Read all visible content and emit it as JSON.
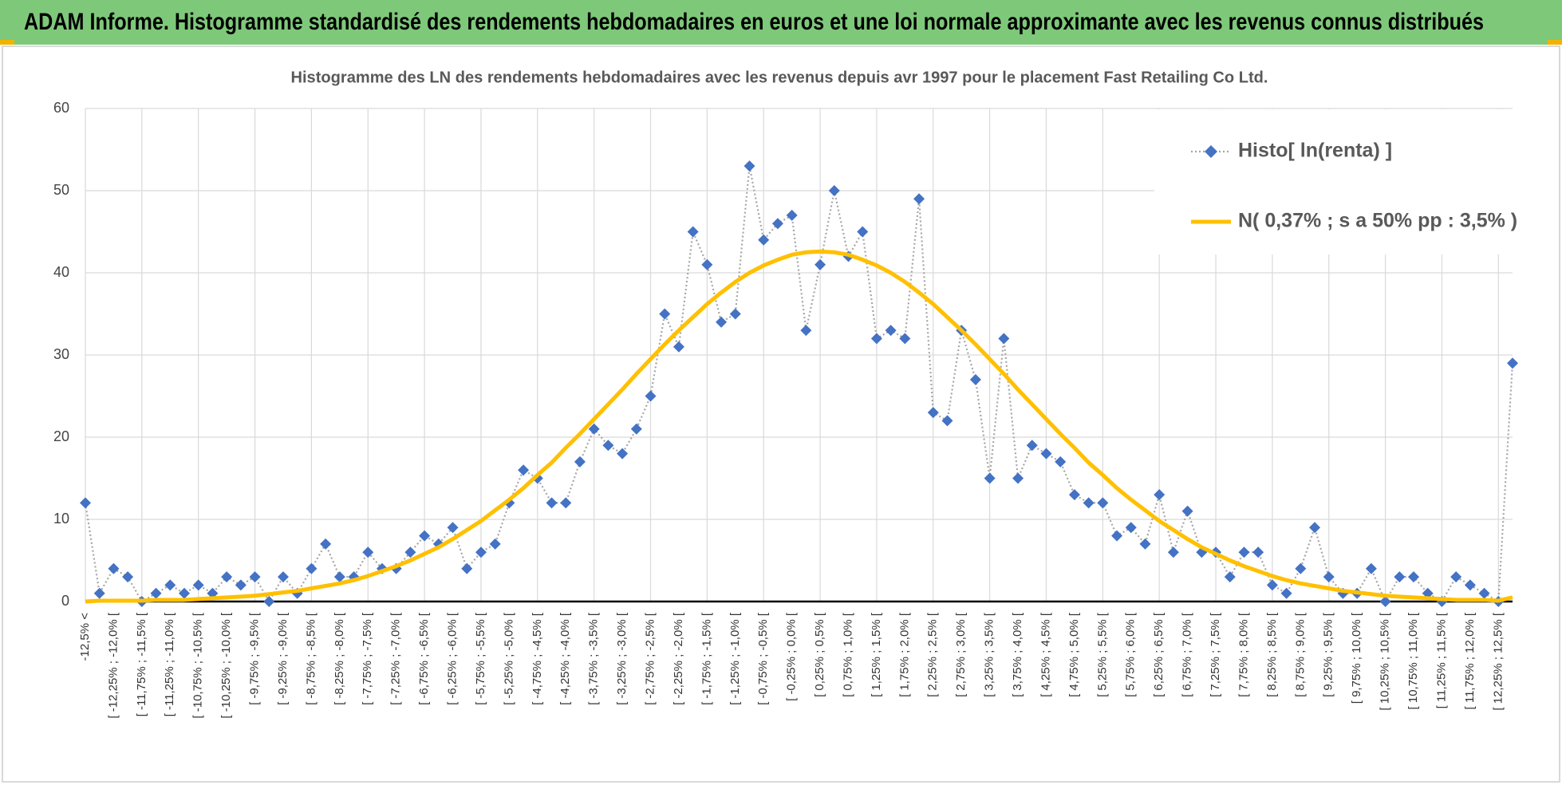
{
  "header": {
    "title": "ADAM Informe. Histogramme standardisé des rendements hebdomadaires en euros et une loi normale approximante avec les revenus connus distribués"
  },
  "chart_data": {
    "type": "line",
    "title": "Histogramme des LN des rendements hebdomadaires avec les revenus depuis avr 1997 pour le placement Fast Retailing Co Ltd.",
    "categories": [
      "-12,5% <",
      null,
      "[ -12,25% ; -12,0% [",
      null,
      "[ -11,75% ; -11,5% [",
      null,
      "[ -11,25% ; -11,0% [",
      null,
      "[ -10,75% ; -10,5% [",
      null,
      "[ -10,25% ; -10,0% [",
      null,
      "[ -9,75% ; -9,5% [",
      null,
      "[ -9,25% ; -9,0% [",
      null,
      "[ -8,75% ; -8,5% [",
      null,
      "[ -8,25% ; -8,0% [",
      null,
      "[ -7,75% ; -7,5% [",
      null,
      "[ -7,25% ; -7,0% [",
      null,
      "[ -6,75% ; -6,5% [",
      null,
      "[ -6,25% ; -6,0% [",
      null,
      "[ -5,75% ; -5,5% [",
      null,
      "[ -5,25% ; -5,0% [",
      null,
      "[ -4,75% ; -4,5% [",
      null,
      "[ -4,25% ; -4,0% [",
      null,
      "[ -3,75% ; -3,5% [",
      null,
      "[ -3,25% ; -3,0% [",
      null,
      "[ -2,75% ; -2,5% [",
      null,
      "[ -2,25% ; -2,0% [",
      null,
      "[ -1,75% ; -1,5% [",
      null,
      "[ -1,25% ; -1,0% [",
      null,
      "[ -0,75% ; -0,5% [",
      null,
      "[ -0,25% ; 0,0% [",
      null,
      "[ 0,25% ; 0,5% [",
      null,
      "[ 0,75% ; 1,0% [",
      null,
      "[ 1,25% ; 1,5% [",
      null,
      "[ 1,75% ; 2,0% [",
      null,
      "[ 2,25% ; 2,5% [",
      null,
      "[ 2,75% ; 3,0% [",
      null,
      "[ 3,25% ; 3,5% [",
      null,
      "[ 3,75% ; 4,0% [",
      null,
      "[ 4,25% ; 4,5% [",
      null,
      "[ 4,75% ; 5,0% [",
      null,
      "[ 5,25% ; 5,5% [",
      null,
      "[ 5,75% ; 6,0% [",
      null,
      "[ 6,25% ; 6,5% [",
      null,
      "[ 6,75% ; 7,0% [",
      null,
      "[ 7,25% ; 7,5% [",
      null,
      "[ 7,75% ; 8,0% [",
      null,
      "[ 8,25% ; 8,5% [",
      null,
      "[ 8,75% ; 9,0% [",
      null,
      "[ 9,25% ; 9,5% [",
      null,
      "[ 9,75% ; 10,0% [",
      null,
      "[ 10,25% ; 10,5% [",
      null,
      "[ 10,75% ; 11,0% [",
      null,
      "[ 11,25% ; 11,5% [",
      null,
      "[ 11,75% ; 12,0% [",
      null,
      "[ 12,25% ; 12,5% [",
      null
    ],
    "series": [
      {
        "name": "Histo[ ln(renta) ]",
        "color": "#4472c4",
        "line_color": "#a6a6a6",
        "line_style": "dotted",
        "marker": "diamond",
        "values": [
          12,
          1,
          4,
          3,
          0,
          1,
          2,
          1,
          2,
          1,
          3,
          2,
          3,
          0,
          3,
          1,
          4,
          7,
          3,
          3,
          6,
          4,
          4,
          6,
          8,
          7,
          9,
          4,
          6,
          7,
          12,
          16,
          15,
          12,
          12,
          17,
          21,
          19,
          18,
          21,
          25,
          35,
          31,
          45,
          41,
          34,
          35,
          53,
          44,
          46,
          47,
          33,
          41,
          50,
          42,
          45,
          32,
          33,
          32,
          49,
          23,
          22,
          33,
          27,
          15,
          32,
          15,
          19,
          18,
          17,
          13,
          12,
          12,
          8,
          9,
          7,
          13,
          6,
          11,
          6,
          6,
          3,
          6,
          6,
          2,
          1,
          4,
          9,
          3,
          1,
          1,
          4,
          0,
          3,
          3,
          1,
          0,
          3,
          2,
          1,
          0,
          29
        ]
      },
      {
        "name": "N( 0,37% ; s a 50% pp : 3,5% )",
        "color": "#ffc000",
        "line_style": "solid",
        "marker": "none",
        "values": [
          0.0,
          0.1,
          0.1,
          0.1,
          0.1,
          0.2,
          0.2,
          0.2,
          0.3,
          0.4,
          0.5,
          0.6,
          0.7,
          0.9,
          1.1,
          1.3,
          1.6,
          1.9,
          2.2,
          2.6,
          3.1,
          3.7,
          4.3,
          5.0,
          5.8,
          6.6,
          7.6,
          8.7,
          9.8,
          11.1,
          12.4,
          13.8,
          15.4,
          16.9,
          18.7,
          20.4,
          22.2,
          24.0,
          25.8,
          27.7,
          29.5,
          31.3,
          33.0,
          34.6,
          36.2,
          37.6,
          38.9,
          40.0,
          40.9,
          41.6,
          42.2,
          42.5,
          42.6,
          42.5,
          42.2,
          41.6,
          40.9,
          40.0,
          38.9,
          37.6,
          36.2,
          34.6,
          33.0,
          31.3,
          29.5,
          27.7,
          25.8,
          24.0,
          22.2,
          20.4,
          18.7,
          16.9,
          15.4,
          13.8,
          12.4,
          11.1,
          9.8,
          8.7,
          7.6,
          6.6,
          5.8,
          5.0,
          4.3,
          3.7,
          3.1,
          2.6,
          2.2,
          1.9,
          1.6,
          1.3,
          1.1,
          0.9,
          0.7,
          0.6,
          0.5,
          0.4,
          0.3,
          0.2,
          0.2,
          0.2,
          0.1,
          0.5
        ]
      }
    ],
    "ylim": [
      0,
      60
    ],
    "yticks": [
      0,
      10,
      20,
      30,
      40,
      50,
      60
    ],
    "grid": true,
    "legend": "upper right"
  }
}
